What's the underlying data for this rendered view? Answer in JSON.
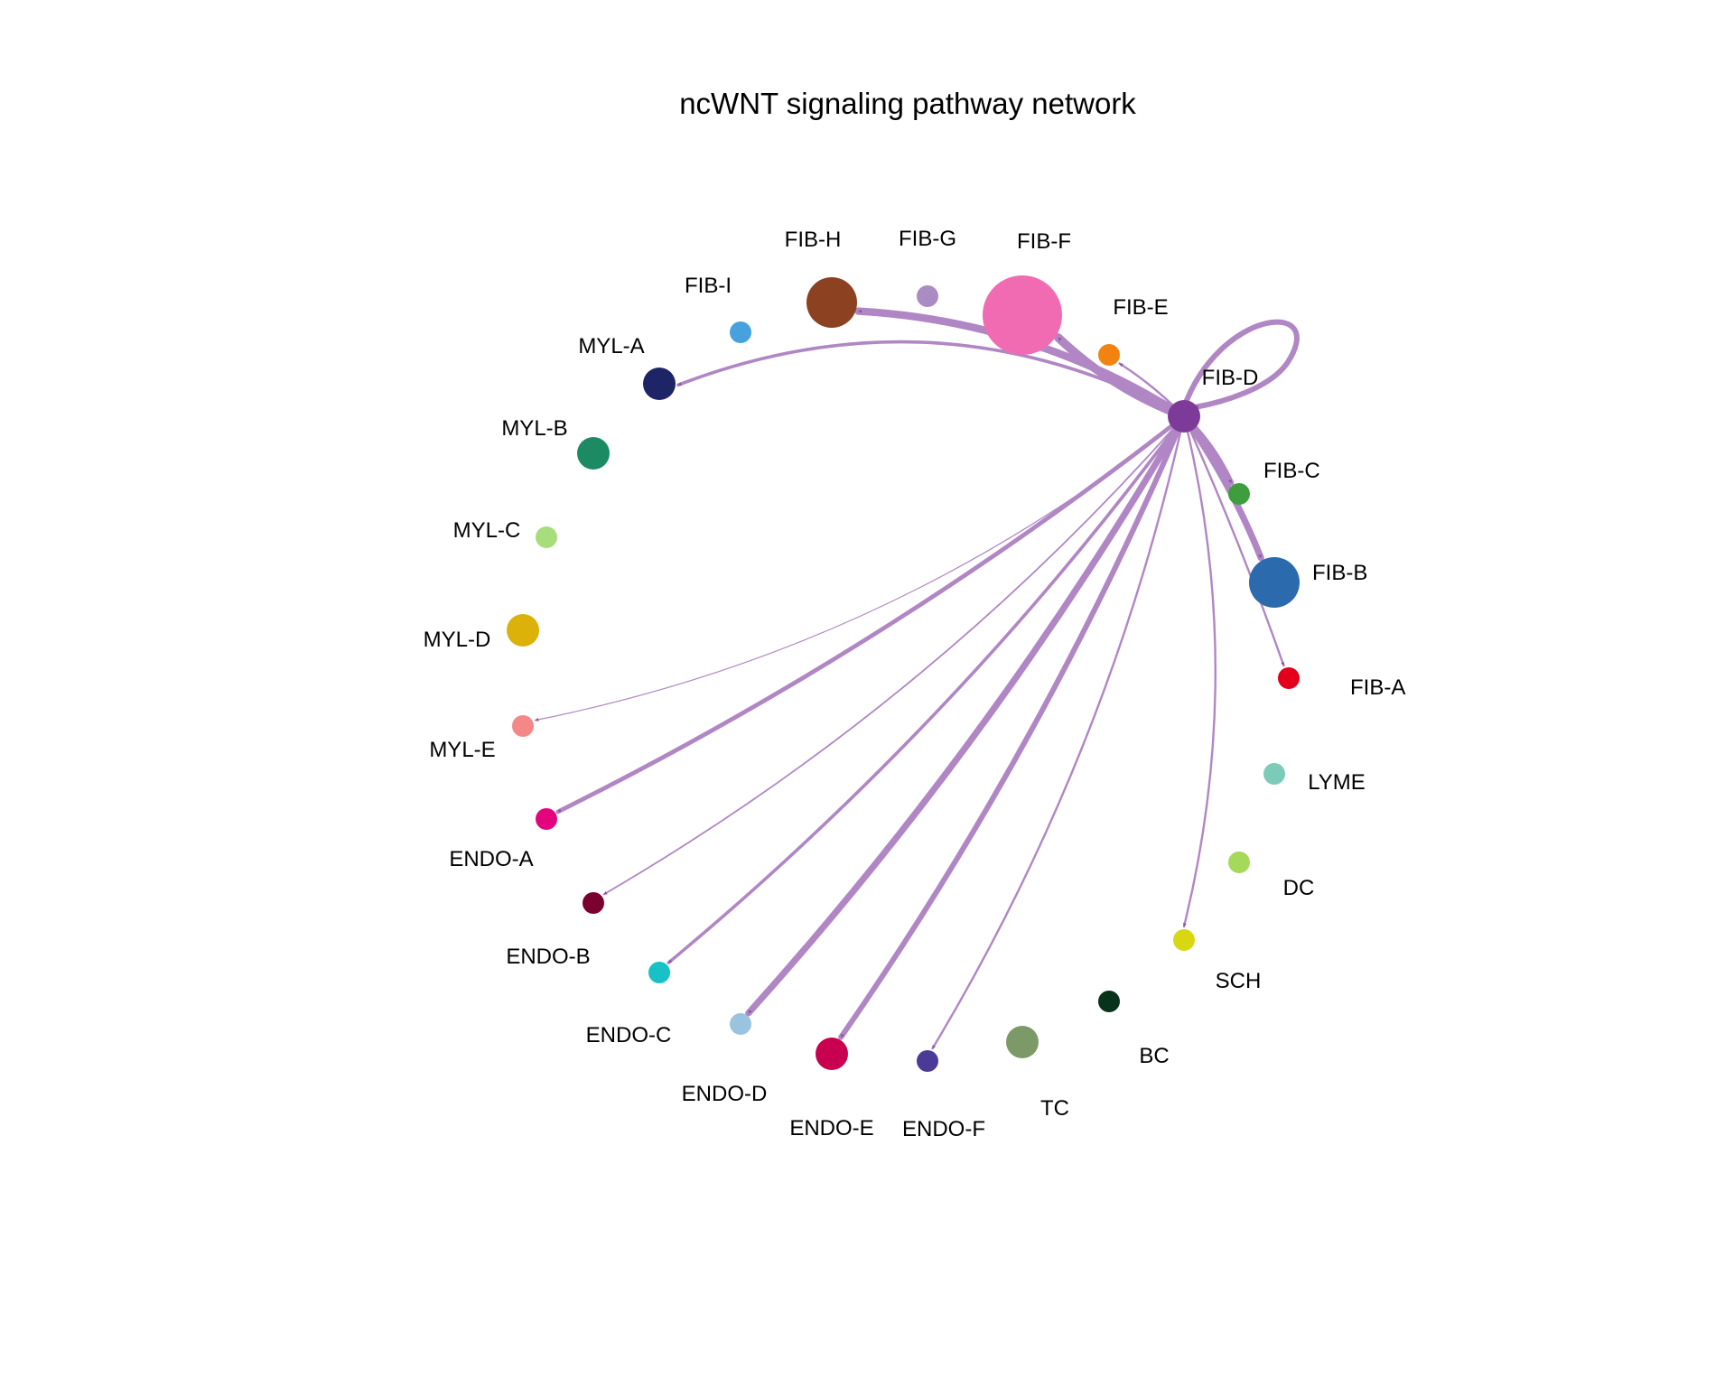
{
  "title": "ncWNT signaling pathway network",
  "colors": {
    "edge": "#b086c4",
    "arrow": "#8e4fa8"
  },
  "nodes": [
    {
      "id": "FIB-A",
      "label": "FIB-A",
      "color": "#e2001a",
      "size": "small"
    },
    {
      "id": "FIB-B",
      "label": "FIB-B",
      "color": "#2b6aad",
      "size": "large"
    },
    {
      "id": "FIB-C",
      "label": "FIB-C",
      "color": "#3e9e3e",
      "size": "small"
    },
    {
      "id": "FIB-D",
      "label": "FIB-D",
      "color": "#7d3a98",
      "size": "medium"
    },
    {
      "id": "FIB-E",
      "label": "FIB-E",
      "color": "#f28311",
      "size": "small"
    },
    {
      "id": "FIB-F",
      "label": "FIB-F",
      "color": "#f06bb1",
      "size": "largest"
    },
    {
      "id": "FIB-G",
      "label": "FIB-G",
      "color": "#ab8bc3",
      "size": "small"
    },
    {
      "id": "FIB-H",
      "label": "FIB-H",
      "color": "#8c4120",
      "size": "large"
    },
    {
      "id": "FIB-I",
      "label": "FIB-I",
      "color": "#47a1dd",
      "size": "small"
    },
    {
      "id": "MYL-A",
      "label": "MYL-A",
      "color": "#1d2566",
      "size": "medium"
    },
    {
      "id": "MYL-B",
      "label": "MYL-B",
      "color": "#1c8a62",
      "size": "medium"
    },
    {
      "id": "MYL-C",
      "label": "MYL-C",
      "color": "#a7dd7a",
      "size": "small"
    },
    {
      "id": "MYL-D",
      "label": "MYL-D",
      "color": "#dbb10a",
      "size": "medium"
    },
    {
      "id": "MYL-E",
      "label": "MYL-E",
      "color": "#f48887",
      "size": "small"
    },
    {
      "id": "ENDO-A",
      "label": "ENDO-A",
      "color": "#e2057e",
      "size": "small"
    },
    {
      "id": "ENDO-B",
      "label": "ENDO-B",
      "color": "#7a0030",
      "size": "small"
    },
    {
      "id": "ENDO-C",
      "label": "ENDO-C",
      "color": "#18c1c5",
      "size": "small"
    },
    {
      "id": "ENDO-D",
      "label": "ENDO-D",
      "color": "#99c3df",
      "size": "small"
    },
    {
      "id": "ENDO-E",
      "label": "ENDO-E",
      "color": "#c8004f",
      "size": "medium"
    },
    {
      "id": "ENDO-F",
      "label": "ENDO-F",
      "color": "#4b3b97",
      "size": "small"
    },
    {
      "id": "TC",
      "label": "TC",
      "color": "#7b9a68",
      "size": "medium"
    },
    {
      "id": "BC",
      "label": "BC",
      "color": "#06331a",
      "size": "small"
    },
    {
      "id": "SCH",
      "label": "SCH",
      "color": "#d9d612",
      "size": "small"
    },
    {
      "id": "DC",
      "label": "DC",
      "color": "#a5d95a",
      "size": "small"
    },
    {
      "id": "LYME",
      "label": "LYME",
      "color": "#7ccbb8",
      "size": "small"
    }
  ],
  "edges": [
    {
      "source": "FIB-D",
      "target": "FIB-D",
      "weight": 5
    },
    {
      "source": "FIB-D",
      "target": "FIB-E",
      "weight": 2
    },
    {
      "source": "FIB-D",
      "target": "FIB-F",
      "weight": 8
    },
    {
      "source": "FIB-D",
      "target": "FIB-H",
      "weight": 7
    },
    {
      "source": "FIB-D",
      "target": "MYL-A",
      "weight": 3
    },
    {
      "source": "FIB-D",
      "target": "FIB-C",
      "weight": 5
    },
    {
      "source": "FIB-D",
      "target": "FIB-B",
      "weight": 6
    },
    {
      "source": "FIB-D",
      "target": "FIB-A",
      "weight": 2
    },
    {
      "source": "FIB-D",
      "target": "SCH",
      "weight": 2
    },
    {
      "source": "FIB-D",
      "target": "ENDO-F",
      "weight": 2
    },
    {
      "source": "FIB-D",
      "target": "ENDO-E",
      "weight": 5
    },
    {
      "source": "FIB-D",
      "target": "ENDO-D",
      "weight": 6
    },
    {
      "source": "FIB-D",
      "target": "ENDO-C",
      "weight": 3
    },
    {
      "source": "FIB-D",
      "target": "ENDO-B",
      "weight": 1.5
    },
    {
      "source": "FIB-D",
      "target": "ENDO-A",
      "weight": 4
    },
    {
      "source": "FIB-D",
      "target": "MYL-E",
      "weight": 1
    }
  ]
}
